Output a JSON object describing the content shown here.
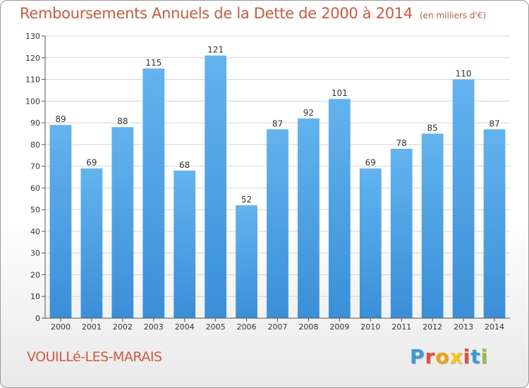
{
  "colors": {
    "bar": "#3a8fd8",
    "bar_light": "#62b3ee",
    "title": "#d45a3a",
    "grid": "#d4d4d4",
    "axis_text": "#333333"
  },
  "header": {
    "title": "Remboursements Annuels de la Dette de 2000 à 2014",
    "unit": "(en milliers d'€)"
  },
  "footer": {
    "commune": "VOUILLé-LES-MARAIS",
    "brand": "Proxiti",
    "brand_colors": [
      "#3a9bd9",
      "#e84c3d",
      "#f0a30a",
      "#f5c518",
      "#e84c3d",
      "#3a9bd9",
      "#8cc63f"
    ]
  },
  "chart_data": {
    "type": "bar",
    "title": "Remboursements Annuels de la Dette de 2000 à 2014",
    "xlabel": "",
    "ylabel": "",
    "ylim": [
      0,
      130
    ],
    "ytick_step": 10,
    "grid": true,
    "categories": [
      "2000",
      "2001",
      "2002",
      "2003",
      "2004",
      "2005",
      "2006",
      "2007",
      "2008",
      "2009",
      "2010",
      "2011",
      "2012",
      "2013",
      "2014"
    ],
    "values": [
      89,
      69,
      88,
      115,
      68,
      121,
      52,
      87,
      92,
      101,
      69,
      78,
      85,
      110,
      87
    ]
  }
}
